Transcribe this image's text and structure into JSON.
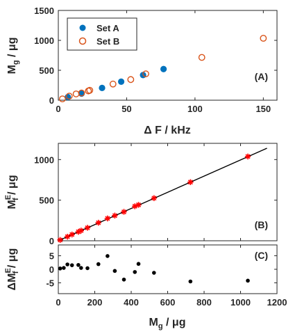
{
  "colors": {
    "setA": "#0072bd",
    "setB": "#d95319",
    "fit": "#000000",
    "fitPoint": "#ff0000",
    "residual": "#000000"
  },
  "chart_data": [
    {
      "panel_label": "(A)",
      "type": "scatter",
      "xlabel": "Δ F / kHz",
      "ylabel": {
        "main": "M",
        "sub": "g",
        "unit": " / μg"
      },
      "xlim": [
        0,
        160
      ],
      "ylim": [
        0,
        1500
      ],
      "xticks": [
        "0",
        "50",
        "100",
        "150"
      ],
      "yticks": [
        "0",
        "500",
        "1000",
        "1500"
      ],
      "legend_position": "top-left",
      "series": [
        {
          "name": "Set A",
          "marker": "filled-circle",
          "color": "#0072bd",
          "x": [
            7,
            17,
            32,
            46,
            62,
            77
          ],
          "y": [
            52,
            110,
            205,
            310,
            420,
            520
          ]
        },
        {
          "name": "Set B",
          "marker": "open-circle",
          "color": "#d95319",
          "x": [
            3,
            8,
            13,
            17,
            22,
            23,
            40,
            53,
            64,
            105,
            150
          ],
          "y": [
            22,
            68,
            105,
            120,
            155,
            165,
            270,
            345,
            440,
            715,
            1035
          ]
        }
      ]
    },
    {
      "panel_label": "(B)",
      "type": "scatter",
      "xlabel": "",
      "ylabel": {
        "main": "M",
        "sub": "f",
        "sup": "E",
        "unit": " / μg"
      },
      "xlim": [
        0,
        1200
      ],
      "ylim": [
        0,
        1200
      ],
      "xticks": [],
      "yticks": [
        "0",
        "500",
        "1000"
      ],
      "series": [
        {
          "marker": "star",
          "color": "#ff0000",
          "x": [
            10,
            50,
            75,
            110,
            125,
            160,
            220,
            270,
            310,
            360,
            420,
            440,
            525,
            725,
            1040
          ],
          "y": [
            10,
            50,
            77,
            110,
            125,
            160,
            222,
            275,
            310,
            356,
            425,
            442,
            525,
            722,
            1038
          ]
        },
        {
          "marker": "line",
          "color": "#000000",
          "x": [
            0,
            1145
          ],
          "y": [
            0,
            1140
          ]
        }
      ]
    },
    {
      "panel_label": "(C)",
      "type": "scatter",
      "xlabel": {
        "main": "M",
        "sub": "g",
        "unit": " / μg"
      },
      "ylabel": {
        "prefix": "ΔM",
        "sub": "f",
        "sup": "E",
        "unit": " / μg"
      },
      "xlim": [
        0,
        1200
      ],
      "ylim": [
        -9,
        9
      ],
      "xticks": [
        "0",
        "200",
        "400",
        "600",
        "800",
        "1000",
        "1200"
      ],
      "yticks": [
        "-5",
        "0",
        "5"
      ],
      "series": [
        {
          "marker": "filled-dot",
          "color": "#000000",
          "x": [
            10,
            30,
            50,
            75,
            110,
            125,
            160,
            220,
            270,
            310,
            360,
            420,
            440,
            525,
            725,
            1040
          ],
          "y": [
            0.3,
            0.5,
            1.8,
            1.5,
            1.6,
            0.5,
            0.4,
            1.9,
            4.9,
            -0.6,
            -3.8,
            -1.0,
            2.0,
            -1.3,
            -4.5,
            -4.2
          ]
        }
      ]
    }
  ]
}
